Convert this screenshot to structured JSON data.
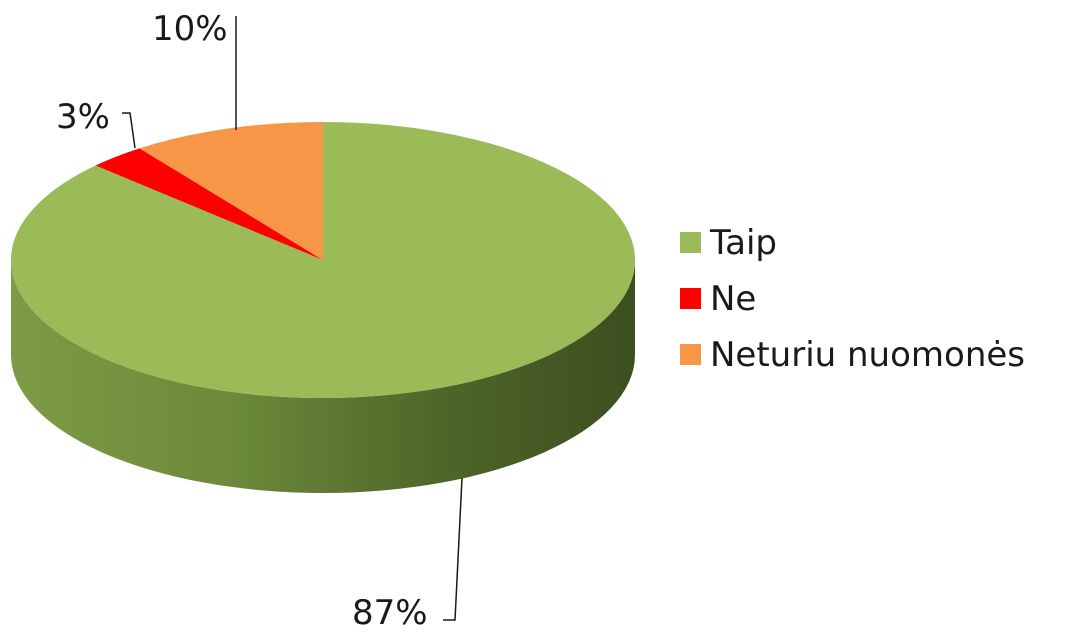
{
  "chart_data": {
    "type": "pie",
    "title": "",
    "categories": [
      "Taip",
      "Ne",
      "Neturiu nuomonės"
    ],
    "values": [
      87,
      3,
      10
    ],
    "data_labels": [
      "87%",
      "3%",
      "10%"
    ],
    "colors": [
      "#9bbb59",
      "#ff0000",
      "#f79646"
    ],
    "legend": {
      "placement": "right",
      "entries": [
        "Taip",
        "Ne",
        "Neturiu nuomonės"
      ]
    },
    "style": "3d"
  }
}
